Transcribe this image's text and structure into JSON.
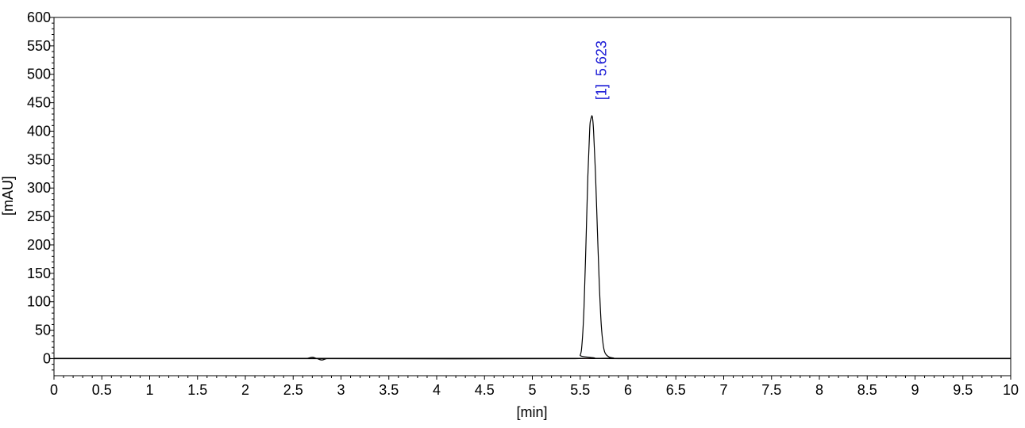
{
  "chart_data": {
    "type": "line",
    "title": "",
    "xlabel": "[min]",
    "ylabel": "[mAU]",
    "xlim": [
      0,
      10
    ],
    "ylim": [
      -30,
      600
    ],
    "x_ticks": [
      "0",
      "0.5",
      "1",
      "1.5",
      "2",
      "2.5",
      "3",
      "3.5",
      "4",
      "4.5",
      "5",
      "5.5",
      "6",
      "6.5",
      "7",
      "7.5",
      "8",
      "8.5",
      "9",
      "9.5",
      "10"
    ],
    "y_ticks": [
      "0",
      "50",
      "100",
      "150",
      "200",
      "250",
      "300",
      "350",
      "400",
      "450",
      "500",
      "550",
      "600"
    ],
    "grid": false,
    "series": [
      {
        "color": "#000000",
        "x": [
          0,
          2.6,
          2.65,
          2.7,
          2.75,
          2.8,
          2.85,
          2.9,
          5.45,
          5.5,
          5.52,
          5.54,
          5.56,
          5.58,
          5.6,
          5.61,
          5.62,
          5.623,
          5.63,
          5.64,
          5.66,
          5.68,
          5.7,
          5.72,
          5.74,
          5.76,
          5.8,
          5.85,
          5.9,
          10
        ],
        "y": [
          0,
          0,
          0.5,
          2.5,
          0,
          -2.5,
          0,
          0,
          0,
          6,
          28,
          90,
          200,
          320,
          405,
          420,
          426,
          427,
          422,
          400,
          325,
          225,
          130,
          60,
          25,
          10,
          3,
          1,
          0,
          0
        ]
      }
    ],
    "baselines": [
      {
        "color": "#e0524a",
        "x": [
          5.45,
          6.5
        ],
        "y": [
          0,
          0
        ]
      }
    ],
    "peaks": [
      {
        "label": "[1]  5.623",
        "x": 5.623,
        "y": 427,
        "color": "#1a1ad6"
      }
    ]
  }
}
